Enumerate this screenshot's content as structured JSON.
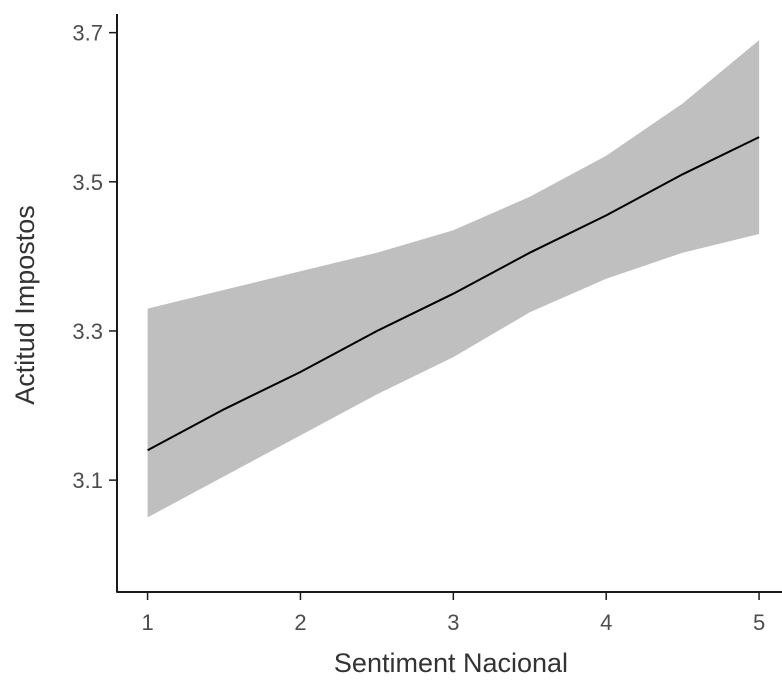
{
  "chart_data": {
    "type": "line",
    "xlabel": "Sentiment Nacional",
    "ylabel": "Actitud Impostos",
    "xlim": [
      0.8,
      5.15
    ],
    "ylim": [
      2.95,
      3.725
    ],
    "x_ticks": [
      1,
      2,
      3,
      4,
      5
    ],
    "y_ticks": [
      3.1,
      3.3,
      3.5,
      3.7
    ],
    "x_tick_labels": [
      "1",
      "2",
      "3",
      "4",
      "5"
    ],
    "y_tick_labels": [
      "3.1",
      "3.3",
      "3.5",
      "3.7"
    ],
    "grid": false,
    "series": [
      {
        "x": [
          1,
          1.5,
          2,
          2.5,
          3,
          3.5,
          4,
          4.5,
          5
        ],
        "values": [
          3.14,
          3.195,
          3.245,
          3.3,
          3.35,
          3.405,
          3.455,
          3.51,
          3.56
        ],
        "lower": [
          3.05,
          3.105,
          3.16,
          3.215,
          3.265,
          3.325,
          3.37,
          3.405,
          3.43
        ],
        "upper": [
          3.33,
          3.355,
          3.38,
          3.405,
          3.435,
          3.48,
          3.535,
          3.605,
          3.69
        ]
      }
    ],
    "colors": {
      "line": "#000000",
      "band": "#bfbfbf",
      "axis": "#1a1a1a"
    }
  }
}
